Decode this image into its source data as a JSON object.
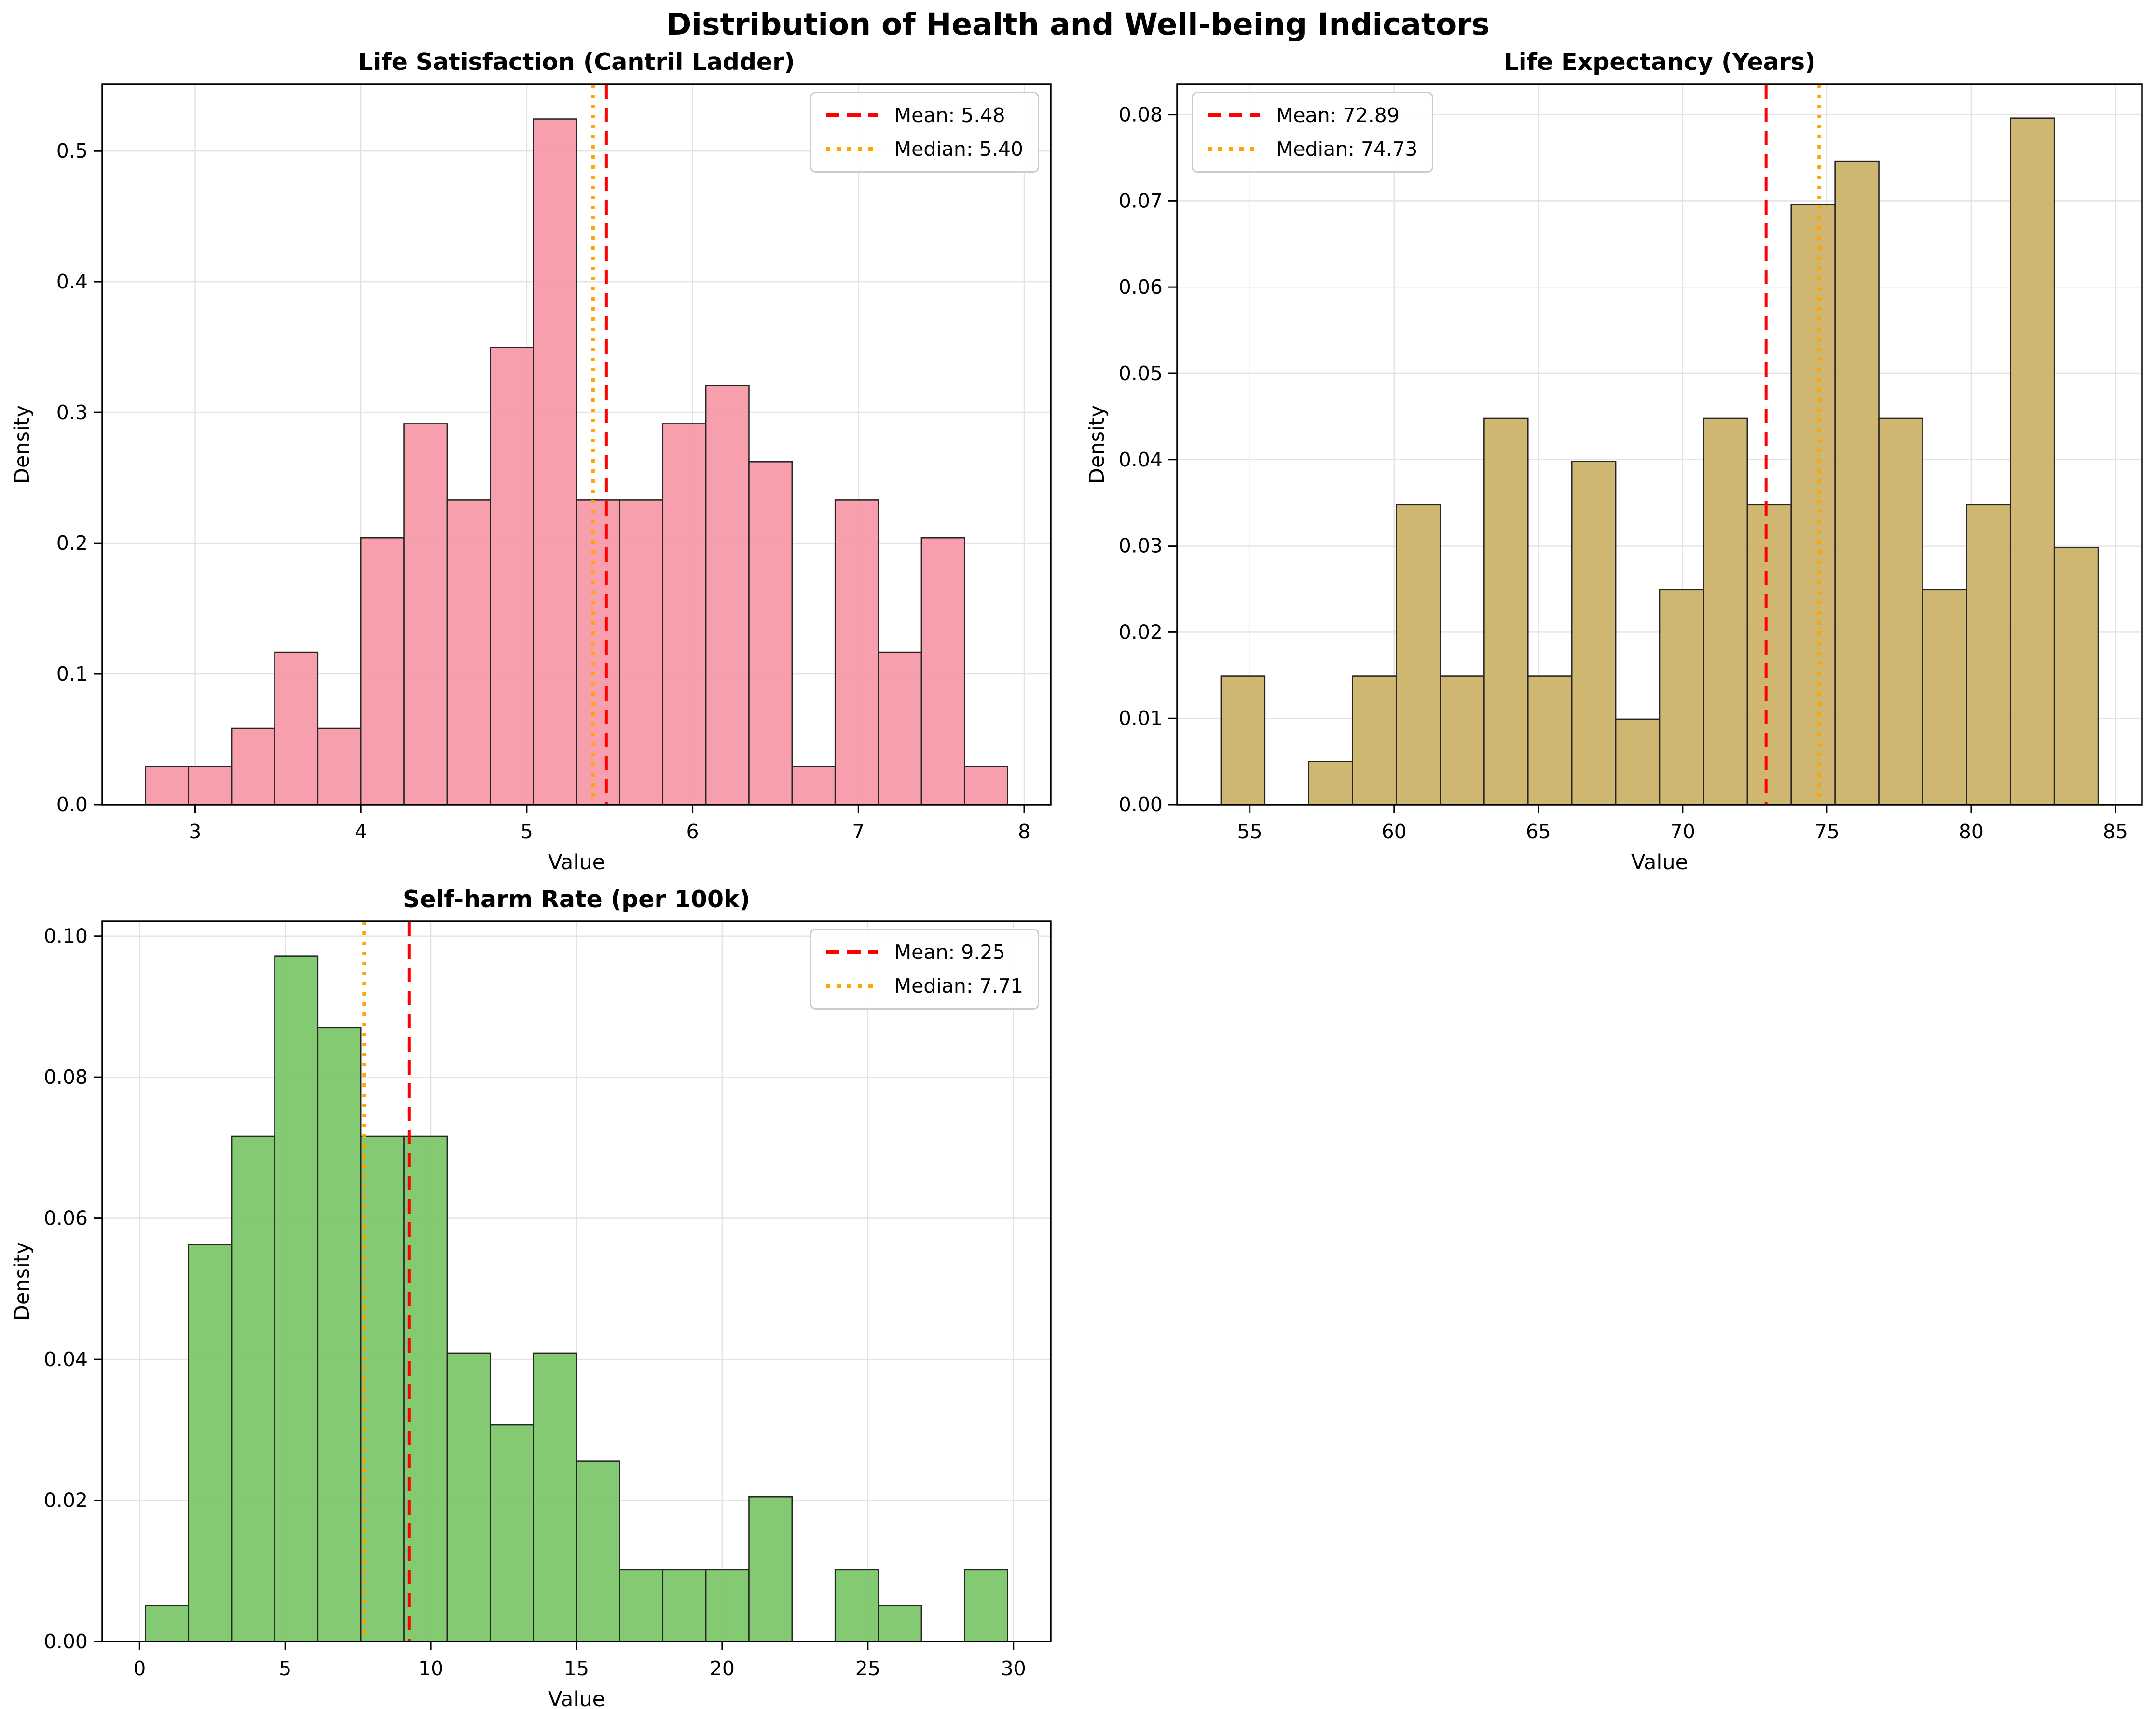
{
  "figure": {
    "title": "Distribution of Health and Well-being Indicators"
  },
  "colors": {
    "mean_line": "#ff0000",
    "median_line": "#ffa500",
    "grid": "#e3e3e3",
    "spine": "#000000",
    "background": "#ffffff",
    "tick_text": "#000000"
  },
  "chart_data": [
    {
      "type": "bar",
      "title": "Life Satisfaction (Cantril Ladder)",
      "xlabel": "Value",
      "ylabel": "Density",
      "bar_color": "#f89baa",
      "bar_edge_color": "#262626",
      "bins": {
        "start": 2.7,
        "width": 0.26
      },
      "values": [
        0.0291,
        0.0291,
        0.0583,
        0.1166,
        0.0583,
        0.204,
        0.2914,
        0.2331,
        0.3497,
        0.5246,
        0.2331,
        0.2331,
        0.2914,
        0.3206,
        0.2623,
        0.0291,
        0.2331,
        0.1166,
        0.204,
        0.0291
      ],
      "xlim": [
        2.44,
        8.16
      ],
      "ylim": [
        0,
        0.551
      ],
      "xticks": [
        3,
        4,
        5,
        6,
        7,
        8
      ],
      "xtick_labels": [
        "3",
        "4",
        "5",
        "6",
        "7",
        "8"
      ],
      "yticks": [
        0,
        0.1,
        0.2,
        0.3,
        0.4,
        0.5
      ],
      "ytick_labels": [
        "0.0",
        "0.1",
        "0.2",
        "0.3",
        "0.4",
        "0.5"
      ],
      "mean": 5.48,
      "median": 5.4,
      "grid": true,
      "legend": {
        "mean_label": "Mean: 5.48",
        "median_label": "Median: 5.40",
        "position": "top-right"
      }
    },
    {
      "type": "bar",
      "title": "Life Expectancy (Years)",
      "xlabel": "Value",
      "ylabel": "Density",
      "bar_color": "#cdb46c",
      "bar_edge_color": "#262626",
      "bins": {
        "start": 54.0,
        "width": 1.52
      },
      "values": [
        0.0149,
        0,
        0.005,
        0.0149,
        0.0348,
        0.0149,
        0.0448,
        0.0149,
        0.0398,
        0.0099,
        0.0249,
        0.0448,
        0.0348,
        0.0696,
        0.0746,
        0.0448,
        0.0249,
        0.0348,
        0.0796,
        0.0298
      ],
      "xlim": [
        52.48,
        85.92
      ],
      "ylim": [
        0,
        0.0835
      ],
      "xticks": [
        55,
        60,
        65,
        70,
        75,
        80,
        85
      ],
      "xtick_labels": [
        "55",
        "60",
        "65",
        "70",
        "75",
        "80",
        "85"
      ],
      "yticks": [
        0,
        0.01,
        0.02,
        0.03,
        0.04,
        0.05,
        0.06,
        0.07,
        0.08
      ],
      "ytick_labels": [
        "0.00",
        "0.01",
        "0.02",
        "0.03",
        "0.04",
        "0.05",
        "0.06",
        "0.07",
        "0.08"
      ],
      "mean": 72.89,
      "median": 74.73,
      "grid": true,
      "legend": {
        "mean_label": "Mean: 72.89",
        "median_label": "Median: 74.73",
        "position": "top-left"
      }
    },
    {
      "type": "bar",
      "title": "Self-harm Rate (per 100k)",
      "xlabel": "Value",
      "ylabel": "Density",
      "bar_color": "#7ec86d",
      "bar_edge_color": "#262626",
      "bins": {
        "start": 0.2,
        "width": 1.48
      },
      "values": [
        0.0051,
        0.0563,
        0.0716,
        0.0972,
        0.087,
        0.0716,
        0.0716,
        0.0409,
        0.0307,
        0.0409,
        0.0256,
        0.0102,
        0.0102,
        0.0102,
        0.0205,
        0,
        0.0102,
        0.0051,
        0,
        0.0102
      ],
      "xlim": [
        -1.28,
        31.28
      ],
      "ylim": [
        0,
        0.1021
      ],
      "xticks": [
        0,
        5,
        10,
        15,
        20,
        25,
        30
      ],
      "xtick_labels": [
        "0",
        "5",
        "10",
        "15",
        "20",
        "25",
        "30"
      ],
      "yticks": [
        0,
        0.02,
        0.04,
        0.06,
        0.08,
        0.1
      ],
      "ytick_labels": [
        "0.00",
        "0.02",
        "0.04",
        "0.06",
        "0.08",
        "0.10"
      ],
      "mean": 9.25,
      "median": 7.71,
      "grid": true,
      "legend": {
        "mean_label": "Mean: 9.25",
        "median_label": "Median: 7.71",
        "position": "top-right"
      }
    }
  ]
}
